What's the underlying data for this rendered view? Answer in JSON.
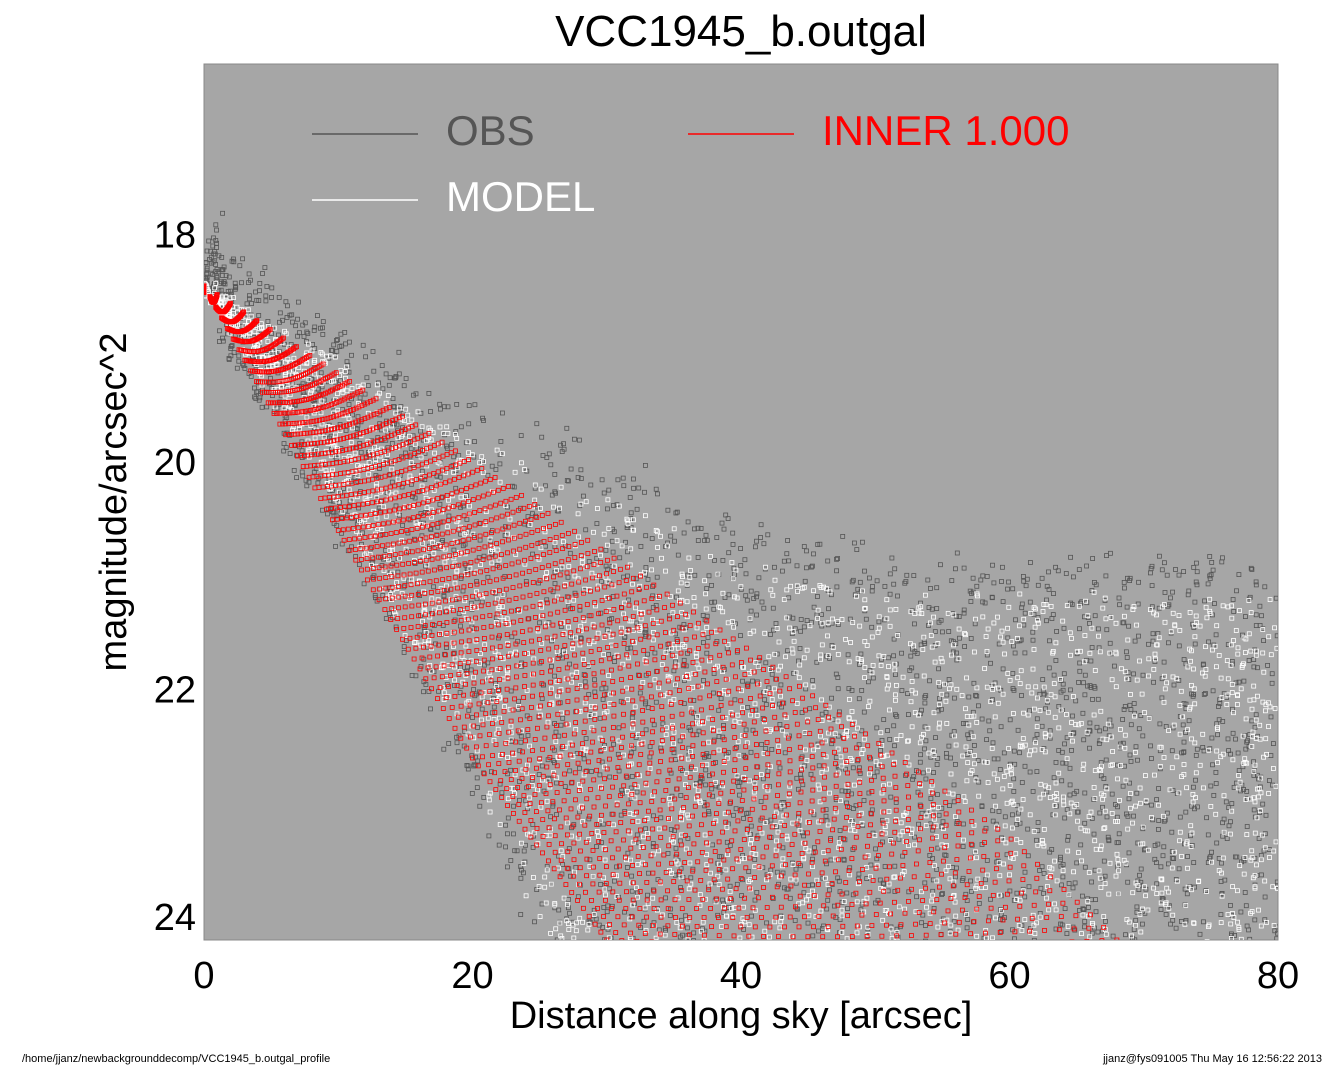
{
  "chart_data": {
    "type": "scatter",
    "title": "VCC1945_b.outgal",
    "xlabel": "Distance along sky [arcsec]",
    "ylabel": "magnitude/arcsec^2",
    "xlim": [
      0,
      80
    ],
    "ylim": [
      24.2,
      16.5
    ],
    "y_inverted": true,
    "x_ticks": [
      0,
      20,
      40,
      60,
      80
    ],
    "y_ticks": [
      18,
      20,
      22,
      24
    ],
    "grid": false,
    "plot_background": "#a6a6a6",
    "legend": {
      "placement": "top",
      "entries": [
        {
          "label": "OBS",
          "color": "#555555"
        },
        {
          "label": "MODEL",
          "color": "#ffffff"
        },
        {
          "label": "INNER  1.000",
          "color": "#ff0000"
        }
      ]
    },
    "series": [
      {
        "name": "OBS",
        "color": "#555555",
        "marker": "square",
        "description_points": [
          {
            "x": 0.3,
            "y": 17.7
          },
          {
            "x": 0.5,
            "y": 18.0
          },
          {
            "x": 0.8,
            "y": 18.3
          },
          {
            "x": 1.5,
            "y": 19.3
          },
          {
            "x": 3.0,
            "y": 20.4
          },
          {
            "x": 5.0,
            "y": 20.6
          },
          {
            "x": 10,
            "y": 19.4
          },
          {
            "x": 20,
            "y": 20.0
          },
          {
            "x": 25,
            "y": 20.0
          },
          {
            "x": 30,
            "y": 20.4
          },
          {
            "x": 40,
            "y": 20.9
          },
          {
            "x": 50,
            "y": 21.0
          },
          {
            "x": 60,
            "y": 21.0
          },
          {
            "x": 70,
            "y": 21.0
          },
          {
            "x": 80,
            "y": 21.0
          },
          {
            "x": 15,
            "y": 23.0
          },
          {
            "x": 20,
            "y": 24.0
          },
          {
            "x": 70,
            "y": 24.0
          }
        ]
      },
      {
        "name": "MODEL",
        "color": "#ffffff",
        "marker": "square",
        "upper_edge": [
          {
            "x": 0,
            "y": 18.45
          },
          {
            "x": 20,
            "y": 19.8
          },
          {
            "x": 40,
            "y": 20.9
          },
          {
            "x": 50,
            "y": 21.2
          },
          {
            "x": 80,
            "y": 21.2
          }
        ],
        "lower_edge": [
          {
            "x": 0,
            "y": 18.45
          },
          {
            "x": 10,
            "y": 20.4
          },
          {
            "x": 20,
            "y": 22.6
          },
          {
            "x": 25,
            "y": 24.2
          }
        ]
      },
      {
        "name": "INNER  1.000",
        "color": "#ff0000",
        "marker": "square",
        "upper_edge": [
          {
            "x": 0,
            "y": 18.45
          },
          {
            "x": 20,
            "y": 20.0
          },
          {
            "x": 40,
            "y": 21.6
          },
          {
            "x": 60,
            "y": 23.3
          },
          {
            "x": 68,
            "y": 24.2
          }
        ],
        "lower_edge": [
          {
            "x": 0,
            "y": 18.45
          },
          {
            "x": 10,
            "y": 20.6
          },
          {
            "x": 20,
            "y": 22.6
          },
          {
            "x": 30,
            "y": 24.2
          }
        ]
      }
    ]
  },
  "footer": {
    "left": "/home/jjanz/newbackgrounddecomp/VCC1945_b.outgal_profile",
    "right": "jjanz@fys091005  Thu May 16 12:56:22 2013"
  }
}
